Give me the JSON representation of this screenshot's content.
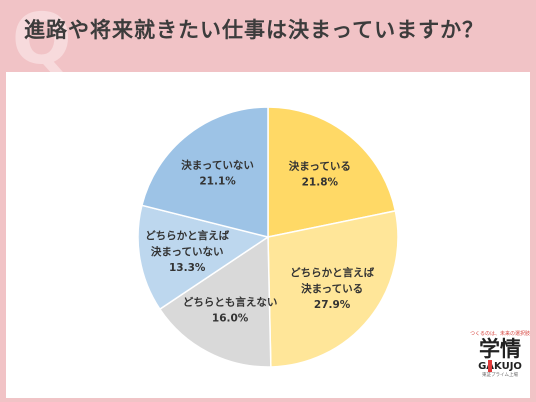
{
  "header": {
    "title": "進路や将来就きたい仕事は決まっていますか？",
    "q_mark": "Q"
  },
  "chart_data": {
    "type": "pie",
    "title": "",
    "start_angle_deg": 0,
    "direction": "clockwise",
    "slices": [
      {
        "label_lines": [
          "決まっている"
        ],
        "value": 21.8,
        "value_text": "21.8%",
        "color": "#ffd966"
      },
      {
        "label_lines": [
          "どちらかと言えば",
          "決まっている"
        ],
        "value": 27.9,
        "value_text": "27.9%",
        "color": "#ffe699"
      },
      {
        "label_lines": [
          "どちらとも言えない"
        ],
        "value": 16.0,
        "value_text": "16.0%",
        "color": "#d9d9d9"
      },
      {
        "label_lines": [
          "どちらかと言えば",
          "決まっていない"
        ],
        "value": 13.3,
        "value_text": "13.3%",
        "color": "#bdd7ee"
      },
      {
        "label_lines": [
          "決まっていない"
        ],
        "value": 21.1,
        "value_text": "21.1%",
        "color": "#9dc3e6"
      }
    ]
  },
  "logo": {
    "tagline": "つくるのは、未来の選択肢",
    "kanji": "学情",
    "en": "GAKUJO",
    "sub": "東証プライム上場"
  }
}
